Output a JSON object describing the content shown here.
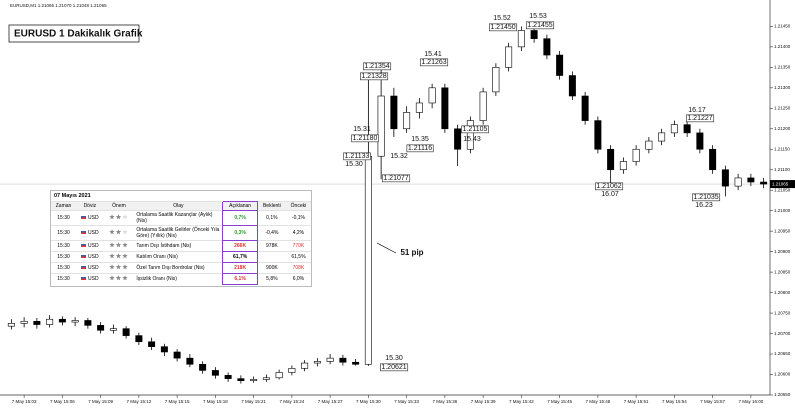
{
  "chart_data": {
    "type": "candlestick",
    "header": "EURUSD,M1 1.21065 1.21070 1.21048 1.21065",
    "title": "EURUSD 1 Dakikalık Grafik",
    "categories": [
      null,
      "7 May 15:03",
      null,
      null,
      "7 May 15:06",
      null,
      null,
      "7 May 15:09",
      null,
      null,
      "7 May 15:12",
      null,
      null,
      "7 May 15:15",
      null,
      null,
      "7 May 15:18",
      null,
      null,
      "7 May 15:21",
      null,
      null,
      "7 May 15:24",
      null,
      null,
      "7 May 15:27",
      null,
      null,
      "7 May 15:30",
      null,
      null,
      "7 May 15:33",
      null,
      null,
      "7 May 15:36",
      null,
      null,
      "7 May 15:39",
      null,
      null,
      "7 May 15:42",
      null,
      null,
      "7 May 15:45",
      null,
      null,
      "7 May 15:48",
      null,
      null,
      "7 May 15:51",
      null,
      null,
      "7 May 15:54",
      null,
      null,
      "7 May 15:57",
      null,
      null,
      "7 May 16:00",
      null
    ],
    "open": [
      1.20718,
      1.20725,
      1.2073,
      1.20722,
      1.20735,
      1.20728,
      1.20732,
      1.2072,
      1.20708,
      1.20712,
      1.20695,
      1.2068,
      1.20668,
      1.20655,
      1.2064,
      1.20625,
      1.2061,
      1.20598,
      1.2059,
      1.20585,
      1.20588,
      1.20592,
      1.20605,
      1.20615,
      1.20628,
      1.20632,
      1.2064,
      1.2063,
      1.20625,
      1.21133,
      1.2128,
      1.212,
      1.2124,
      1.21263,
      1.213,
      1.212,
      1.2115,
      1.2122,
      1.2129,
      1.2135,
      1.214,
      1.2144,
      1.2142,
      1.2138,
      1.2133,
      1.2128,
      1.2122,
      1.2115,
      1.211,
      1.2112,
      1.2115,
      1.2117,
      1.2119,
      1.2121,
      1.2119,
      1.2115,
      1.211,
      1.2106,
      1.2108,
      1.2107
    ],
    "high": [
      1.20735,
      1.2074,
      1.20738,
      1.20745,
      1.20742,
      1.2074,
      1.20738,
      1.20728,
      1.20722,
      1.20718,
      1.20702,
      1.2069,
      1.20675,
      1.20662,
      1.2065,
      1.20632,
      1.20618,
      1.20605,
      1.20598,
      1.20595,
      1.206,
      1.20612,
      1.20622,
      1.20635,
      1.2064,
      1.2065,
      1.20648,
      1.20638,
      1.2132,
      1.21354,
      1.213,
      1.21255,
      1.21275,
      1.2131,
      1.2131,
      1.2121,
      1.2123,
      1.213,
      1.2136,
      1.2141,
      1.2145,
      1.21455,
      1.2143,
      1.2139,
      1.2134,
      1.2129,
      1.2123,
      1.2116,
      1.2113,
      1.2116,
      1.2118,
      1.212,
      1.2122,
      1.21227,
      1.212,
      1.2116,
      1.2111,
      1.2109,
      1.2109,
      1.2108
    ],
    "low": [
      1.2071,
      1.20715,
      1.20712,
      1.20715,
      1.2072,
      1.20718,
      1.20712,
      1.207,
      1.207,
      1.20688,
      1.20672,
      1.2066,
      1.20645,
      1.20632,
      1.20618,
      1.20602,
      1.2059,
      1.20582,
      1.20578,
      1.2058,
      1.20582,
      1.20588,
      1.20598,
      1.20608,
      1.2062,
      1.20625,
      1.20622,
      1.20622,
      1.20621,
      1.21077,
      1.2118,
      1.2119,
      1.21225,
      1.2125,
      1.2119,
      1.21109,
      1.2114,
      1.2121,
      1.2128,
      1.2134,
      1.2139,
      1.2141,
      1.2137,
      1.2132,
      1.2127,
      1.2121,
      1.2114,
      1.21062,
      1.2109,
      1.2111,
      1.2114,
      1.2116,
      1.2118,
      1.2118,
      1.2114,
      1.2109,
      1.21035,
      1.2105,
      1.2106,
      1.21055
    ],
    "close": [
      1.20725,
      1.2073,
      1.20722,
      1.20735,
      1.20728,
      1.20732,
      1.2072,
      1.20708,
      1.20712,
      1.20695,
      1.2068,
      1.20668,
      1.20655,
      1.2064,
      1.20625,
      1.2061,
      1.20598,
      1.2059,
      1.20585,
      1.20588,
      1.20592,
      1.20605,
      1.20615,
      1.20628,
      1.20632,
      1.2064,
      1.2063,
      1.20625,
      1.21133,
      1.2128,
      1.212,
      1.2124,
      1.21263,
      1.213,
      1.212,
      1.2115,
      1.2122,
      1.2129,
      1.2135,
      1.214,
      1.2144,
      1.2142,
      1.2138,
      1.2133,
      1.2128,
      1.2122,
      1.2115,
      1.211,
      1.2112,
      1.2115,
      1.2117,
      1.2119,
      1.2121,
      1.2119,
      1.2115,
      1.211,
      1.2106,
      1.2108,
      1.2107,
      1.21065
    ],
    "up_color": "#ffffff",
    "down_color": "#000000",
    "current_price_label": "1.21065",
    "ylim": [
      1.2055,
      1.2149
    ],
    "yticks": [
      {
        "value": 1.2055,
        "label": "1.20550"
      },
      {
        "value": 1.206,
        "label": "1.20600"
      },
      {
        "value": 1.2065,
        "label": "1.20650"
      },
      {
        "value": 1.207,
        "label": "1.20700"
      },
      {
        "value": 1.2075,
        "label": "1.20750"
      },
      {
        "value": 1.208,
        "label": "1.20800"
      },
      {
        "value": 1.2085,
        "label": "1.20850"
      },
      {
        "value": 1.209,
        "label": "1.20900"
      },
      {
        "value": 1.2095,
        "label": "1.20950"
      },
      {
        "value": 1.21,
        "label": "1.21000"
      },
      {
        "value": 1.2105,
        "label": "1.21050"
      },
      {
        "value": 1.211,
        "label": "1.21100"
      },
      {
        "value": 1.2115,
        "label": "1.21150"
      },
      {
        "value": 1.212,
        "label": "1.21200"
      },
      {
        "value": 1.2125,
        "label": "1.21250"
      },
      {
        "value": 1.213,
        "label": "1.21300"
      },
      {
        "value": 1.2135,
        "label": "1.21350"
      },
      {
        "value": 1.214,
        "label": "1.21400"
      },
      {
        "value": 1.2145,
        "label": "1.21450"
      }
    ],
    "annotations": [
      {
        "text": "15.52"
      },
      {
        "text": "1.21450",
        "boxed": true
      },
      {
        "text": "15.53"
      },
      {
        "text": "1.21455",
        "boxed": true
      },
      {
        "text": "15.41"
      },
      {
        "text": "1.21263",
        "boxed": true
      },
      {
        "text": "1.21354",
        "boxed": true
      },
      {
        "text": "1.21328",
        "boxed": true
      },
      {
        "text": "15.31"
      },
      {
        "text": "1.21180",
        "boxed": true
      },
      {
        "text": "1.21133",
        "boxed": true
      },
      {
        "text": "15.30"
      },
      {
        "text": "15.35"
      },
      {
        "text": "1.21116",
        "boxed": true
      },
      {
        "text": "15.32"
      },
      {
        "text": "1.21077",
        "boxed": true
      },
      {
        "text": "1.21105",
        "boxed": true
      },
      {
        "text": "15.43"
      },
      {
        "text": "16.17"
      },
      {
        "text": "1.21227",
        "boxed": true
      },
      {
        "text": "1.21062",
        "boxed": true
      },
      {
        "text": "16.07"
      },
      {
        "text": "1.21035",
        "boxed": true
      },
      {
        "text": "16.23"
      },
      {
        "text": "15.30"
      },
      {
        "text": "1.20621",
        "boxed": true
      },
      {
        "text": "51 pip",
        "bold": true
      }
    ]
  },
  "table": {
    "title": "07 Mayıs 2021",
    "headers": [
      "Zaman",
      "Döviz",
      "Önem",
      "Olay",
      "Açıklanan",
      "Beklenti",
      "Önceki"
    ],
    "rows": [
      [
        "15:30",
        "USD",
        2,
        "Ortalama Saatlik Kazançlar (Aylık) (Nis)",
        "0,7%",
        "0,1%",
        "-0,1%"
      ],
      [
        "15:30",
        "USD",
        2,
        "Ortalama Saatlik Gelirler (Önceki Yıla Göre) (Yıllık) (Nis)",
        "0,3%",
        "-0,4%",
        "4,2%"
      ],
      [
        "15:30",
        "USD",
        3,
        "Tarım Dışı İstihdam (Nis)",
        "266K",
        "978K",
        "770K"
      ],
      [
        "15:30",
        "USD",
        3,
        "Katılım Oranı (Nis)",
        "61,7%",
        "",
        "61,5%"
      ],
      [
        "15:30",
        "USD",
        3,
        "Özel Tarım Dışı Bordrolar (Nis)",
        "218K",
        "900K",
        "708K"
      ],
      [
        "15:30",
        "USD",
        3,
        "İşsizlik Oranı (Nis)",
        "6,1%",
        "5,8%",
        "6,0%"
      ]
    ],
    "actual_colors": [
      "#2a9d2a",
      "#2a9d2a",
      "#e03030",
      "#000000",
      "#e03030",
      "#e03030"
    ],
    "previous_colors": [
      "#000000",
      "#000000",
      "#e03030",
      "#000000",
      "#e03030",
      "#000000"
    ],
    "highlight_color": "#8a3fd1"
  }
}
